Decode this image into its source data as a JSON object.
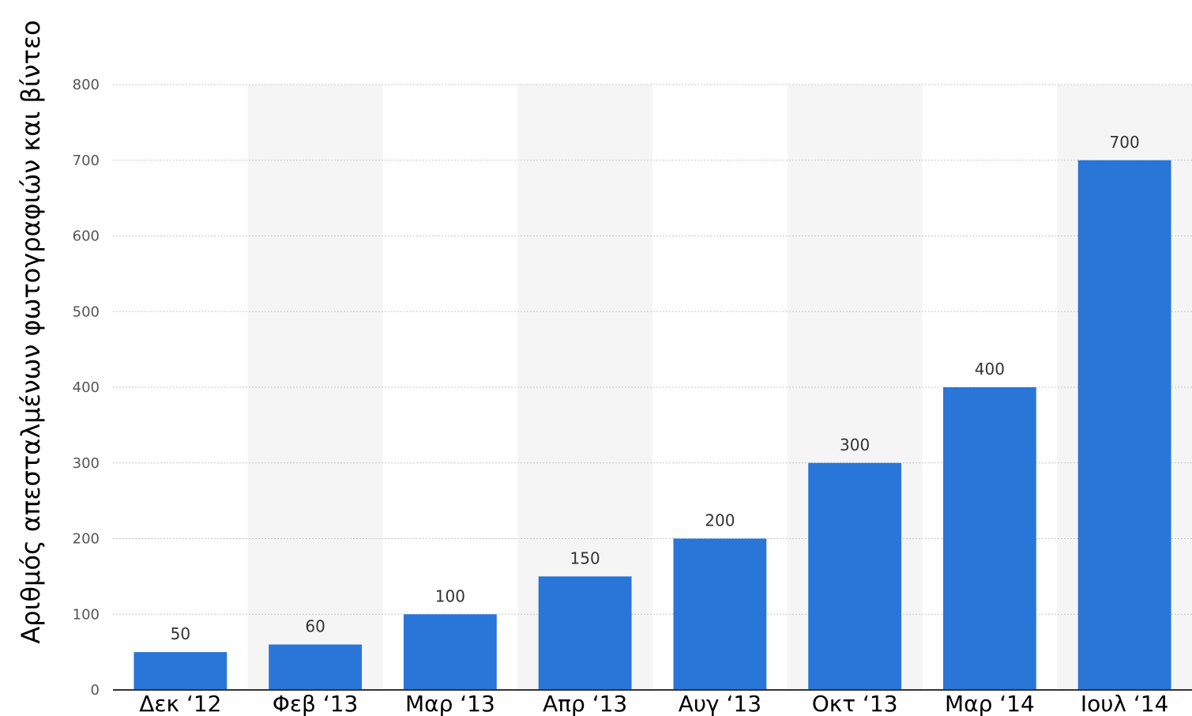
{
  "chart_data": {
    "type": "bar",
    "ylabel": "Αριθμός απεσταλμένων φωτογραφιών και βίντεο",
    "categories": [
      "Δεκ ‘12",
      "Φεβ ‘13",
      "Μαρ ‘13",
      "Απρ ‘13",
      "Αυγ ‘13",
      "Οκτ ‘13",
      "Μαρ ‘14",
      "Ιουλ ‘14"
    ],
    "values": [
      50,
      60,
      100,
      150,
      200,
      300,
      400,
      700
    ],
    "ylim": [
      0,
      800
    ],
    "yticks": [
      0,
      100,
      200,
      300,
      400,
      500,
      600,
      700,
      800
    ],
    "grid": true,
    "bar_color": "#2a75d8",
    "alt_band_color": "#f5f5f5"
  }
}
